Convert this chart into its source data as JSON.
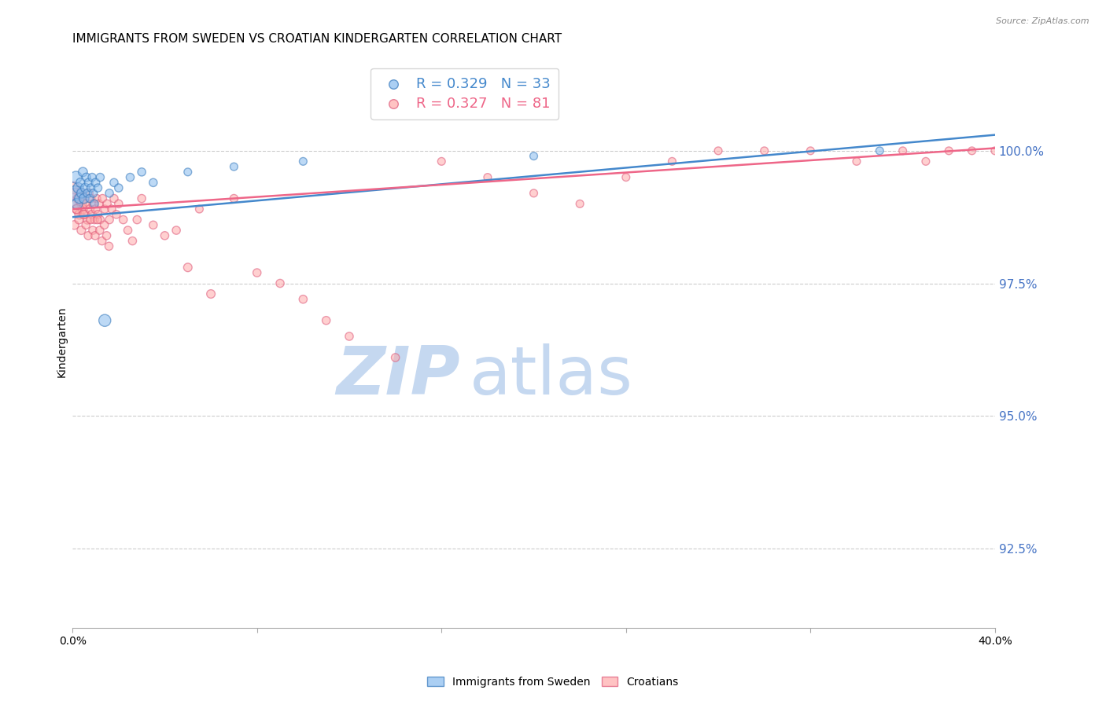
{
  "title": "IMMIGRANTS FROM SWEDEN VS CROATIAN KINDERGARTEN CORRELATION CHART",
  "source": "Source: ZipAtlas.com",
  "ylabel": "Kindergarten",
  "legend_label1": "Immigrants from Sweden",
  "legend_label2": "Croatians",
  "r1": 0.329,
  "n1": 33,
  "r2": 0.327,
  "n2": 81,
  "color_sweden": "#88bbee",
  "color_croatian": "#ffaaaa",
  "color_sweden_line": "#4488cc",
  "color_croatian_line": "#ee6688",
  "color_sweden_edge": "#3377bb",
  "color_croatian_edge": "#dd5577",
  "xlim": [
    0.0,
    40.0
  ],
  "ylim": [
    91.0,
    101.8
  ],
  "yticks": [
    92.5,
    95.0,
    97.5,
    100.0
  ],
  "ytick_labels": [
    "92.5%",
    "95.0%",
    "97.5%",
    "100.0%"
  ],
  "right_axis_color": "#4472c4",
  "background_color": "#ffffff",
  "grid_color": "#cccccc",
  "title_fontsize": 11,
  "watermark_zip_color": "#c5d8f0",
  "watermark_atlas_color": "#c5d8f0",
  "sweden_x": [
    0.1,
    0.15,
    0.2,
    0.25,
    0.3,
    0.35,
    0.4,
    0.45,
    0.5,
    0.55,
    0.6,
    0.65,
    0.7,
    0.75,
    0.8,
    0.85,
    0.9,
    0.95,
    1.0,
    1.1,
    1.2,
    1.4,
    1.6,
    1.8,
    2.0,
    2.5,
    3.0,
    3.5,
    5.0,
    7.0,
    10.0,
    20.0,
    35.0
  ],
  "sweden_y": [
    99.2,
    99.5,
    99.0,
    99.3,
    99.1,
    99.4,
    99.2,
    99.6,
    99.1,
    99.3,
    99.5,
    99.2,
    99.4,
    99.1,
    99.3,
    99.5,
    99.2,
    99.0,
    99.4,
    99.3,
    99.5,
    96.8,
    99.2,
    99.4,
    99.3,
    99.5,
    99.6,
    99.4,
    99.6,
    99.7,
    99.8,
    99.9,
    100.0
  ],
  "sweden_sizes": [
    180,
    120,
    100,
    90,
    80,
    70,
    80,
    70,
    80,
    70,
    60,
    60,
    60,
    55,
    55,
    55,
    55,
    55,
    60,
    55,
    55,
    120,
    55,
    55,
    55,
    55,
    55,
    55,
    50,
    50,
    50,
    50,
    50
  ],
  "croatian_x": [
    0.05,
    0.1,
    0.15,
    0.2,
    0.25,
    0.3,
    0.35,
    0.4,
    0.45,
    0.5,
    0.55,
    0.6,
    0.65,
    0.7,
    0.75,
    0.8,
    0.85,
    0.9,
    0.95,
    1.0,
    1.05,
    1.1,
    1.15,
    1.2,
    1.3,
    1.4,
    1.5,
    1.6,
    1.7,
    1.8,
    1.9,
    2.0,
    2.2,
    2.4,
    2.6,
    2.8,
    3.0,
    3.5,
    4.0,
    4.5,
    5.0,
    5.5,
    6.0,
    7.0,
    8.0,
    9.0,
    10.0,
    11.0,
    12.0,
    14.0,
    16.0,
    18.0,
    20.0,
    22.0,
    24.0,
    26.0,
    28.0,
    30.0,
    32.0,
    34.0,
    36.0,
    37.0,
    38.0,
    39.0,
    40.0,
    0.08,
    0.18,
    0.28,
    0.38,
    0.48,
    0.58,
    0.68,
    0.78,
    0.88,
    0.98,
    1.08,
    1.18,
    1.28,
    1.38,
    1.48,
    1.58
  ],
  "croatian_y": [
    99.3,
    99.0,
    99.2,
    98.9,
    99.1,
    98.8,
    99.2,
    99.0,
    98.9,
    99.1,
    98.8,
    99.0,
    98.7,
    99.2,
    98.9,
    99.1,
    98.8,
    99.0,
    98.7,
    98.9,
    99.1,
    98.8,
    99.0,
    98.7,
    99.1,
    98.9,
    99.0,
    98.7,
    98.9,
    99.1,
    98.8,
    99.0,
    98.7,
    98.5,
    98.3,
    98.7,
    99.1,
    98.6,
    98.4,
    98.5,
    97.8,
    98.9,
    97.3,
    99.1,
    97.7,
    97.5,
    97.2,
    96.8,
    96.5,
    96.1,
    99.8,
    99.5,
    99.2,
    99.0,
    99.5,
    99.8,
    100.0,
    100.0,
    100.0,
    99.8,
    100.0,
    99.8,
    100.0,
    100.0,
    100.0,
    98.6,
    98.9,
    98.7,
    98.5,
    98.8,
    98.6,
    98.4,
    98.7,
    98.5,
    98.4,
    98.7,
    98.5,
    98.3,
    98.6,
    98.4,
    98.2
  ],
  "croatian_sizes": [
    120,
    100,
    90,
    85,
    80,
    75,
    75,
    75,
    70,
    70,
    65,
    65,
    65,
    65,
    60,
    60,
    60,
    60,
    55,
    60,
    55,
    55,
    55,
    55,
    55,
    55,
    55,
    55,
    55,
    55,
    55,
    55,
    55,
    55,
    55,
    55,
    55,
    55,
    55,
    55,
    60,
    50,
    60,
    55,
    55,
    55,
    55,
    55,
    55,
    55,
    50,
    50,
    50,
    50,
    50,
    50,
    50,
    50,
    50,
    50,
    50,
    50,
    50,
    50,
    50,
    65,
    65,
    60,
    60,
    60,
    55,
    55,
    55,
    55,
    55,
    55,
    55,
    55,
    55,
    55,
    55
  ],
  "sweden_trendline_x": [
    0.0,
    40.0
  ],
  "sweden_trendline_y": [
    98.75,
    100.3
  ],
  "croatian_trendline_x": [
    0.0,
    40.0
  ],
  "croatian_trendline_y": [
    98.9,
    100.05
  ]
}
